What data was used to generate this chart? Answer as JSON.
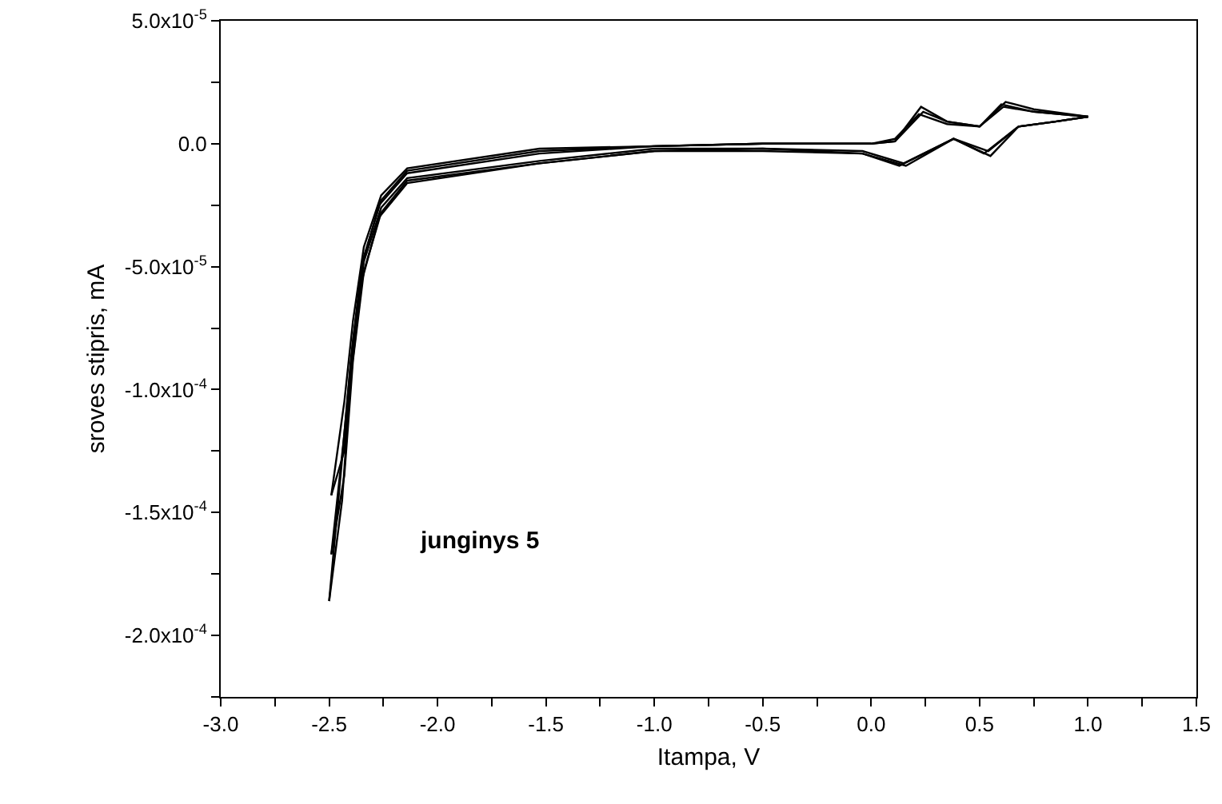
{
  "chart_data": {
    "type": "line",
    "xlabel": "Itampa, V",
    "ylabel": "sroves stipris, mA",
    "annotations": [
      "junginys 5"
    ],
    "xlim": [
      -3,
      1.5
    ],
    "ylim": [
      -0.000225,
      5e-05
    ],
    "xticks": [
      {
        "value": -3,
        "label": "-3.0"
      },
      {
        "value": -2.75,
        "label": null
      },
      {
        "value": -2.5,
        "label": "-2.5"
      },
      {
        "value": -2.25,
        "label": null
      },
      {
        "value": -2,
        "label": "-2.0"
      },
      {
        "value": -1.75,
        "label": null
      },
      {
        "value": -1.5,
        "label": "-1.5"
      },
      {
        "value": -1.25,
        "label": null
      },
      {
        "value": -1,
        "label": "-1.0"
      },
      {
        "value": -0.75,
        "label": null
      },
      {
        "value": -0.5,
        "label": "-0.5"
      },
      {
        "value": -0.25,
        "label": null
      },
      {
        "value": 0,
        "label": "0.0"
      },
      {
        "value": 0.25,
        "label": null
      },
      {
        "value": 0.5,
        "label": "0.5"
      },
      {
        "value": 0.75,
        "label": null
      },
      {
        "value": 1,
        "label": "1.0"
      },
      {
        "value": 1.25,
        "label": null
      },
      {
        "value": 1.5,
        "label": "1.5"
      }
    ],
    "yticks": [
      {
        "value": 5e-05,
        "label": "5.0x10$^{-5}$"
      },
      {
        "value": 2.5e-05,
        "label": null
      },
      {
        "value": 0,
        "label": "0.0"
      },
      {
        "value": -2.5e-05,
        "label": null
      },
      {
        "value": -5e-05,
        "label": "-5.0x10$^{-5}$"
      },
      {
        "value": -7.5e-05,
        "label": null
      },
      {
        "value": -0.0001,
        "label": "-1.0x10$^{-4}$"
      },
      {
        "value": -0.000125,
        "label": null
      },
      {
        "value": -0.00015,
        "label": "-1.5x10$^{-4}$"
      },
      {
        "value": -0.000175,
        "label": null
      },
      {
        "value": -0.0002,
        "label": "-2.0x10$^{-4}$"
      },
      {
        "value": -0.000225,
        "label": null
      }
    ],
    "grid": false,
    "marker": "none",
    "line_style": "solid",
    "series": [
      {
        "color": "#000000",
        "x": [
          -2.49,
          -2.43,
          -2.39,
          -2.34,
          -2.26,
          -2.14,
          -1.53,
          -1,
          -0.5,
          0,
          0.11,
          0.24,
          0.35,
          0.5,
          0.61,
          0.75,
          1
        ],
        "values": [
          -0.000143,
          -0.000105,
          -7.2e-05,
          -4.2e-05,
          -2.1e-05,
          -1e-05,
          -2e-06,
          -1e-06,
          0,
          0,
          1e-06,
          1.3e-05,
          9e-06,
          7e-06,
          1.5e-05,
          1.3e-05,
          1.1e-05
        ]
      },
      {
        "color": "#000000",
        "x": [
          -2.49,
          -2.43,
          -2.39,
          -2.34,
          -2.26,
          -2.14,
          -1.53,
          -1,
          -0.5,
          -0.04,
          0.15,
          0.38,
          0.54,
          0.68,
          0.85,
          1
        ],
        "values": [
          -0.000143,
          -0.000125,
          -8.2e-05,
          -4.8e-05,
          -2.6e-05,
          -1.4e-05,
          -7e-06,
          -2e-06,
          -2e-06,
          -3e-06,
          -8e-06,
          2e-06,
          -3e-06,
          7e-06,
          9e-06,
          1.1e-05
        ]
      },
      {
        "color": "#000000",
        "x": [
          -2.49,
          -2.43,
          -2.39,
          -2.34,
          -2.26,
          -2.14,
          -1.53,
          -1,
          -0.5,
          0,
          0.11,
          0.22,
          0.35,
          0.5,
          0.6,
          0.75,
          1
        ],
        "values": [
          -0.000167,
          -0.000118,
          -8e-05,
          -4.6e-05,
          -2.3e-05,
          -1.1e-05,
          -3e-06,
          -1e-06,
          0,
          0,
          2e-06,
          1.2e-05,
          8e-06,
          7e-06,
          1.6e-05,
          1.3e-05,
          1.1e-05
        ]
      },
      {
        "color": "#000000",
        "x": [
          -2.49,
          -2.43,
          -2.39,
          -2.34,
          -2.26,
          -2.14,
          -1.53,
          -1,
          -0.5,
          -0.04,
          0.13,
          0.38,
          0.52,
          0.68,
          0.85,
          1
        ],
        "values": [
          -0.000167,
          -0.000135,
          -8.8e-05,
          -5.2e-05,
          -2.8e-05,
          -1.5e-05,
          -8e-06,
          -3e-06,
          -2e-06,
          -4e-06,
          -9e-06,
          2e-06,
          -4e-06,
          7e-06,
          9e-06,
          1.1e-05
        ]
      },
      {
        "color": "#000000",
        "x": [
          -2.5,
          -2.44,
          -2.4,
          -2.35,
          -2.27,
          -2.14,
          -1.53,
          -1,
          -0.5,
          0,
          0.11,
          0.23,
          0.35,
          0.5,
          0.62,
          0.75,
          1
        ],
        "values": [
          -0.000186,
          -0.000128,
          -8.8e-05,
          -5e-05,
          -2.5e-05,
          -1.2e-05,
          -4e-06,
          -1e-06,
          0,
          0,
          1e-06,
          1.5e-05,
          9e-06,
          7e-06,
          1.7e-05,
          1.4e-05,
          1.1e-05
        ]
      },
      {
        "color": "#000000",
        "x": [
          -2.5,
          -2.44,
          -2.4,
          -2.35,
          -2.27,
          -2.14,
          -1.53,
          -1,
          -0.5,
          -0.04,
          0.16,
          0.38,
          0.55,
          0.68,
          0.85,
          1
        ],
        "values": [
          -0.000186,
          -0.000145,
          -9.5e-05,
          -5.6e-05,
          -3e-05,
          -1.6e-05,
          -8e-06,
          -3e-06,
          -3e-06,
          -4e-06,
          -9e-06,
          2e-06,
          -5e-06,
          7e-06,
          9e-06,
          1.1e-05
        ]
      }
    ]
  }
}
